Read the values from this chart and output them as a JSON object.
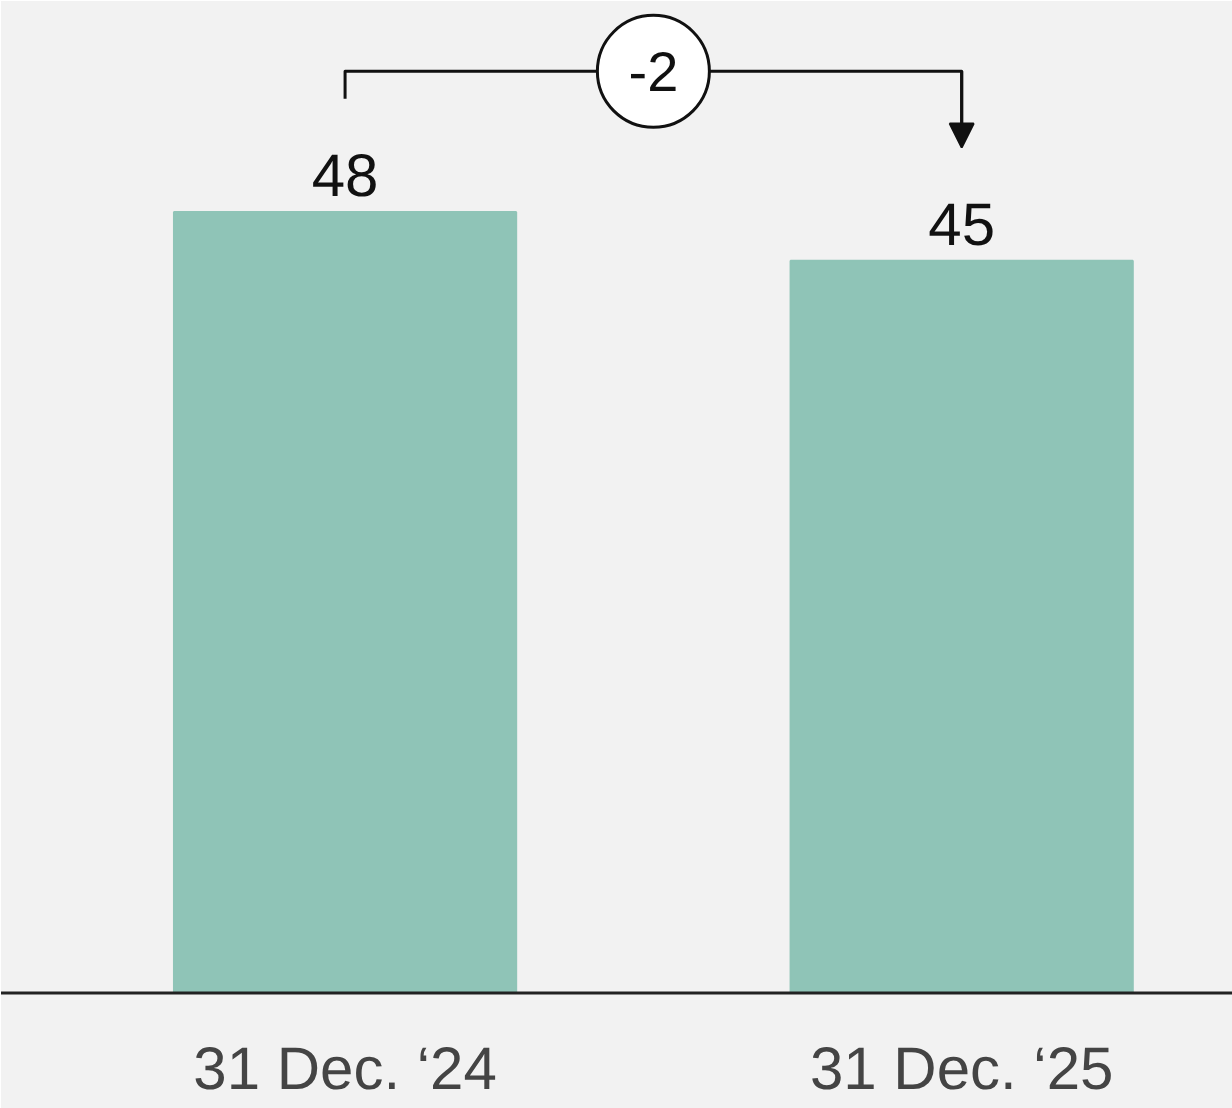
{
  "chart_data": {
    "type": "bar",
    "categories": [
      "31 Dec. ‘24",
      "31 Dec. ‘25"
    ],
    "values": [
      48,
      45
    ],
    "color": "#8fc4b7",
    "data_labels": true,
    "annotations": [
      "-2"
    ],
    "grid": false
  }
}
